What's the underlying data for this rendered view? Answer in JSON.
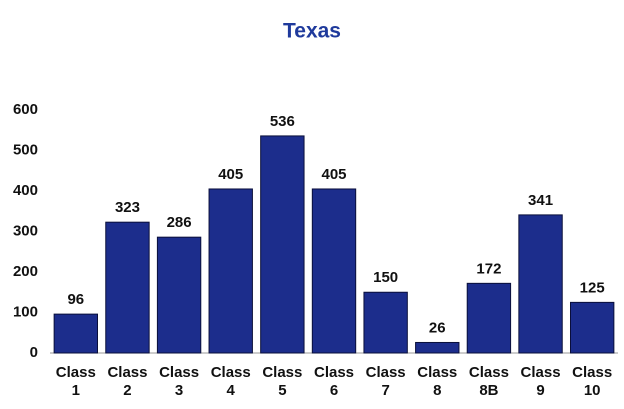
{
  "chart_data": {
    "type": "bar",
    "title": "Texas",
    "categories": [
      "Class 1",
      "Class 2",
      "Class 3",
      "Class 4",
      "Class 5",
      "Class 6",
      "Class 7",
      "Class 8",
      "Class 8B",
      "Class 9",
      "Class 10"
    ],
    "values": [
      96,
      323,
      286,
      405,
      536,
      405,
      150,
      26,
      172,
      341,
      125
    ],
    "color": "#1c2d8c",
    "ylim": [
      0,
      600
    ],
    "yticks": [
      0,
      100,
      200,
      300,
      400,
      500,
      600
    ],
    "grid": false
  }
}
